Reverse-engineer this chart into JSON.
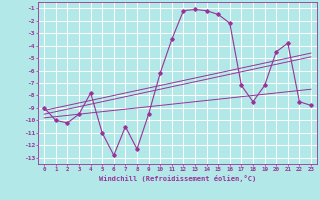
{
  "xlabel": "Windchill (Refroidissement éolien,°C)",
  "background_color": "#b2e8e8",
  "grid_color": "#ffffff",
  "line_color": "#993399",
  "hours": [
    0,
    1,
    2,
    3,
    4,
    5,
    6,
    7,
    8,
    9,
    10,
    11,
    12,
    13,
    14,
    15,
    16,
    17,
    18,
    19,
    20,
    21,
    22,
    23
  ],
  "main_series": [
    -9,
    -10,
    -10.2,
    -9.5,
    -7.8,
    -11,
    -12.8,
    -10.5,
    -12.3,
    -9.5,
    -6.2,
    -3.5,
    -1.2,
    -1.1,
    -1.2,
    -1.5,
    -2.2,
    -7.2,
    -8.5,
    -7.2,
    -4.5,
    -3.8,
    -8.5,
    -8.8
  ],
  "reg_line1": [
    -9.5,
    -9.3,
    -9.1,
    -8.9,
    -8.7,
    -8.5,
    -8.3,
    -8.1,
    -7.9,
    -7.7,
    -7.5,
    -7.3,
    -7.1,
    -6.9,
    -6.7,
    -6.5,
    -6.3,
    -6.1,
    -5.9,
    -5.7,
    -5.5,
    -5.3,
    -5.1,
    -4.9
  ],
  "reg_line2": [
    -9.8,
    -9.7,
    -9.6,
    -9.5,
    -9.4,
    -9.3,
    -9.2,
    -9.1,
    -9.0,
    -8.9,
    -8.8,
    -8.7,
    -8.6,
    -8.5,
    -8.4,
    -8.3,
    -8.2,
    -8.1,
    -8.0,
    -7.9,
    -7.8,
    -7.7,
    -7.6,
    -7.5
  ],
  "reg_line3": [
    -9.2,
    -9.0,
    -8.8,
    -8.6,
    -8.4,
    -8.2,
    -8.0,
    -7.8,
    -7.6,
    -7.4,
    -7.2,
    -7.0,
    -6.8,
    -6.6,
    -6.4,
    -6.2,
    -6.0,
    -5.8,
    -5.6,
    -5.4,
    -5.2,
    -5.0,
    -4.8,
    -4.6
  ],
  "ylim": [
    -13.5,
    -0.5
  ],
  "yticks": [
    -1,
    -2,
    -3,
    -4,
    -5,
    -6,
    -7,
    -8,
    -9,
    -10,
    -11,
    -12,
    -13
  ]
}
